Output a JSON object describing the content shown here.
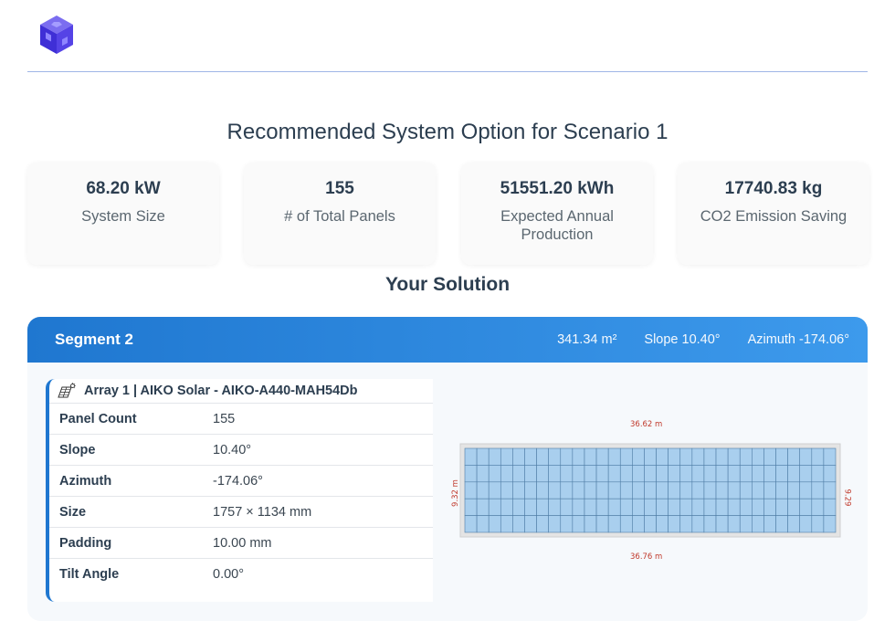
{
  "brand": {
    "logo_icon": "cube-logo-icon"
  },
  "scenario": {
    "title": "Recommended System Option for Scenario 1"
  },
  "stats": [
    {
      "value": "68.20 kW",
      "label": "System Size"
    },
    {
      "value": "155",
      "label": "# of Total Panels"
    },
    {
      "value": "51551.20 kWh",
      "label": "Expected Annual Production"
    },
    {
      "value": "17740.83 kg",
      "label": "CO2 Emission Saving"
    }
  ],
  "solution": {
    "title": "Your Solution"
  },
  "segment": {
    "name": "Segment 2",
    "area": "341.34 m²",
    "slope": "Slope 10.40°",
    "azimuth": "Azimuth -174.06°",
    "accent_color": "#1f77d0"
  },
  "array": {
    "icon": "solar-panel-icon",
    "title": "Array 1 | AIKO Solar - AIKO-A440-MAH54Db",
    "rows": [
      {
        "key": "Panel Count",
        "value": "155"
      },
      {
        "key": "Slope",
        "value": "10.40°"
      },
      {
        "key": "Azimuth",
        "value": "-174.06°"
      },
      {
        "key": "Size",
        "value": "1757 × 1134 mm"
      },
      {
        "key": "Padding",
        "value": "10.00 mm"
      },
      {
        "key": "Tilt Angle",
        "value": "0.00°"
      }
    ]
  },
  "layout": {
    "top_dim": "36.62 m",
    "bottom_dim": "36.76 m",
    "left_dim": "9.32 m",
    "right_dim": "9.29 m",
    "panel_grid": {
      "columns": 31,
      "rows": 5
    },
    "panel_color": "#a9cfee",
    "roof_color": "#e4e4e4"
  }
}
